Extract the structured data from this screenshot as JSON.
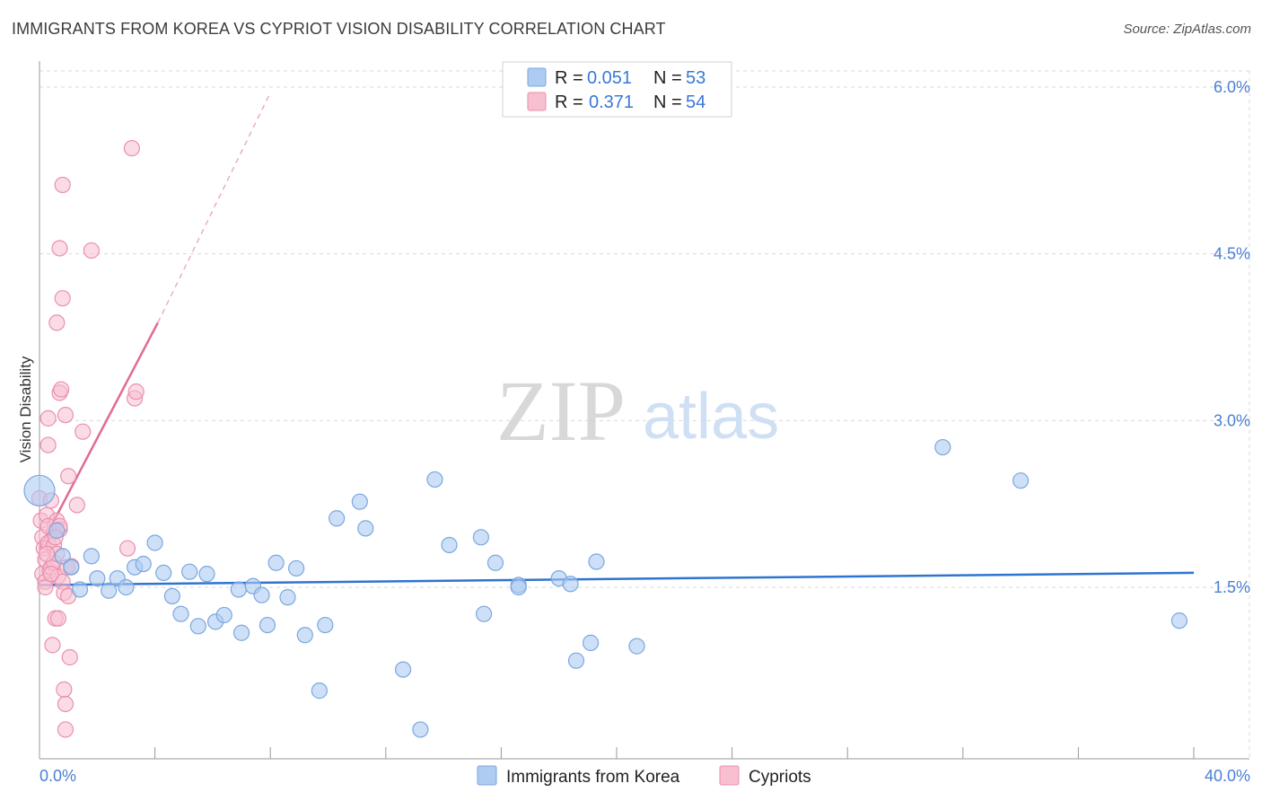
{
  "title": "IMMIGRANTS FROM KOREA VS CYPRIOT VISION DISABILITY CORRELATION CHART",
  "source": "Source: ZipAtlas.com",
  "watermark": {
    "zip": "ZIP",
    "atlas": "atlas"
  },
  "legend": {
    "rows": [
      {
        "r_label": "R =",
        "r_value": "0.051",
        "n_label": "N =",
        "n_value": "53",
        "color": "#a9c8f0"
      },
      {
        "r_label": "R =",
        "r_value": "0.371",
        "n_label": "N =",
        "n_value": "54",
        "color": "#f6b8cb"
      }
    ]
  },
  "colors": {
    "blue_fill": "#aecbf1",
    "blue_stroke": "#7aa7e0",
    "blue_line": "#2f74d0",
    "pink_fill": "#f7bfd0",
    "pink_stroke": "#ea8fae",
    "pink_line": "#e06b94",
    "grid": "#d9d9d9",
    "axis_text": "#4a7fd4"
  },
  "chart_data": {
    "type": "scatter",
    "title": "IMMIGRANTS FROM KOREA VS CYPRIOT VISION DISABILITY CORRELATION CHART",
    "xlabel": "",
    "ylabel": "Vision Disability",
    "xlim": [
      0,
      40
    ],
    "ylim": [
      0,
      6.2
    ],
    "x_tick_labels": [
      "0.0%",
      "40.0%"
    ],
    "y_ticks": [
      1.5,
      3.0,
      4.5,
      6.0
    ],
    "y_tick_labels": [
      "1.5%",
      "3.0%",
      "4.5%",
      "6.0%"
    ],
    "grid": true,
    "legend_position": "top-center",
    "series": [
      {
        "name": "Immigrants from Korea",
        "R": 0.051,
        "N": 53,
        "trend": {
          "x": [
            0,
            40
          ],
          "y": [
            1.52,
            1.63
          ],
          "dashed_extension": false
        },
        "points": [
          {
            "x": 0.0,
            "y": 2.37,
            "big": true
          },
          {
            "x": 0.6,
            "y": 2.01
          },
          {
            "x": 0.8,
            "y": 1.78
          },
          {
            "x": 1.1,
            "y": 1.68
          },
          {
            "x": 1.4,
            "y": 1.48
          },
          {
            "x": 1.8,
            "y": 1.78
          },
          {
            "x": 2.0,
            "y": 1.58
          },
          {
            "x": 2.4,
            "y": 1.47
          },
          {
            "x": 2.7,
            "y": 1.58
          },
          {
            "x": 3.0,
            "y": 1.5
          },
          {
            "x": 3.3,
            "y": 1.68
          },
          {
            "x": 3.6,
            "y": 1.71
          },
          {
            "x": 4.0,
            "y": 1.9
          },
          {
            "x": 4.3,
            "y": 1.63
          },
          {
            "x": 4.6,
            "y": 1.42
          },
          {
            "x": 4.9,
            "y": 1.26
          },
          {
            "x": 5.2,
            "y": 1.64
          },
          {
            "x": 5.5,
            "y": 1.15
          },
          {
            "x": 5.8,
            "y": 1.62
          },
          {
            "x": 6.1,
            "y": 1.19
          },
          {
            "x": 6.4,
            "y": 1.25
          },
          {
            "x": 6.9,
            "y": 1.48
          },
          {
            "x": 7.0,
            "y": 1.09
          },
          {
            "x": 7.4,
            "y": 1.51
          },
          {
            "x": 7.7,
            "y": 1.43
          },
          {
            "x": 7.9,
            "y": 1.16
          },
          {
            "x": 8.2,
            "y": 1.72
          },
          {
            "x": 8.6,
            "y": 1.41
          },
          {
            "x": 8.9,
            "y": 1.67
          },
          {
            "x": 9.2,
            "y": 1.07
          },
          {
            "x": 9.7,
            "y": 0.57
          },
          {
            "x": 9.9,
            "y": 1.16
          },
          {
            "x": 10.3,
            "y": 2.12
          },
          {
            "x": 11.1,
            "y": 2.27
          },
          {
            "x": 11.3,
            "y": 2.03
          },
          {
            "x": 12.6,
            "y": 0.76
          },
          {
            "x": 13.2,
            "y": 0.22
          },
          {
            "x": 13.7,
            "y": 2.47
          },
          {
            "x": 14.2,
            "y": 1.88
          },
          {
            "x": 15.3,
            "y": 1.95
          },
          {
            "x": 15.4,
            "y": 1.26
          },
          {
            "x": 15.8,
            "y": 1.72
          },
          {
            "x": 16.6,
            "y": 1.52
          },
          {
            "x": 16.6,
            "y": 1.5
          },
          {
            "x": 18.0,
            "y": 1.58
          },
          {
            "x": 18.4,
            "y": 1.53
          },
          {
            "x": 18.6,
            "y": 0.84
          },
          {
            "x": 19.1,
            "y": 1.0
          },
          {
            "x": 19.3,
            "y": 1.73
          },
          {
            "x": 20.7,
            "y": 0.97
          },
          {
            "x": 31.3,
            "y": 2.76
          },
          {
            "x": 34.0,
            "y": 2.46
          },
          {
            "x": 39.5,
            "y": 1.2
          }
        ]
      },
      {
        "name": "Cypriots",
        "R": 0.371,
        "N": 54,
        "trend": {
          "x": [
            0,
            4.1
          ],
          "y": [
            1.85,
            3.88
          ],
          "dashed_to": {
            "x": 8.0,
            "y": 5.95
          }
        },
        "points": [
          {
            "x": 0.0,
            "y": 2.3
          },
          {
            "x": 0.05,
            "y": 2.1
          },
          {
            "x": 0.1,
            "y": 1.95
          },
          {
            "x": 0.1,
            "y": 1.62
          },
          {
            "x": 0.15,
            "y": 1.85
          },
          {
            "x": 0.2,
            "y": 1.75
          },
          {
            "x": 0.2,
            "y": 1.55
          },
          {
            "x": 0.25,
            "y": 2.15
          },
          {
            "x": 0.3,
            "y": 3.02
          },
          {
            "x": 0.3,
            "y": 2.78
          },
          {
            "x": 0.3,
            "y": 1.9
          },
          {
            "x": 0.35,
            "y": 1.65
          },
          {
            "x": 0.4,
            "y": 2.28
          },
          {
            "x": 0.4,
            "y": 1.68
          },
          {
            "x": 0.45,
            "y": 0.98
          },
          {
            "x": 0.5,
            "y": 2.0
          },
          {
            "x": 0.5,
            "y": 1.88
          },
          {
            "x": 0.5,
            "y": 1.72
          },
          {
            "x": 0.55,
            "y": 1.22
          },
          {
            "x": 0.6,
            "y": 3.88
          },
          {
            "x": 0.6,
            "y": 2.1
          },
          {
            "x": 0.65,
            "y": 1.6
          },
          {
            "x": 0.65,
            "y": 1.22
          },
          {
            "x": 0.7,
            "y": 4.55
          },
          {
            "x": 0.7,
            "y": 3.25
          },
          {
            "x": 0.7,
            "y": 2.02
          },
          {
            "x": 0.75,
            "y": 3.28
          },
          {
            "x": 0.8,
            "y": 4.1
          },
          {
            "x": 0.8,
            "y": 5.12
          },
          {
            "x": 0.8,
            "y": 1.55
          },
          {
            "x": 0.85,
            "y": 0.58
          },
          {
            "x": 0.85,
            "y": 1.45
          },
          {
            "x": 0.9,
            "y": 3.05
          },
          {
            "x": 0.9,
            "y": 0.45
          },
          {
            "x": 0.9,
            "y": 0.22
          },
          {
            "x": 0.95,
            "y": 1.68
          },
          {
            "x": 1.0,
            "y": 2.5
          },
          {
            "x": 1.0,
            "y": 1.42
          },
          {
            "x": 1.05,
            "y": 0.87
          },
          {
            "x": 1.1,
            "y": 1.69
          },
          {
            "x": 1.3,
            "y": 2.24
          },
          {
            "x": 1.5,
            "y": 2.9
          },
          {
            "x": 1.8,
            "y": 4.53
          },
          {
            "x": 3.05,
            "y": 1.85
          },
          {
            "x": 3.2,
            "y": 5.45
          },
          {
            "x": 3.3,
            "y": 3.2
          },
          {
            "x": 3.35,
            "y": 3.26
          },
          {
            "x": 0.2,
            "y": 1.5
          },
          {
            "x": 0.3,
            "y": 2.05
          },
          {
            "x": 0.6,
            "y": 1.8
          },
          {
            "x": 0.4,
            "y": 1.62
          },
          {
            "x": 0.7,
            "y": 2.05
          },
          {
            "x": 0.25,
            "y": 1.8
          },
          {
            "x": 0.55,
            "y": 1.95
          }
        ]
      }
    ]
  }
}
